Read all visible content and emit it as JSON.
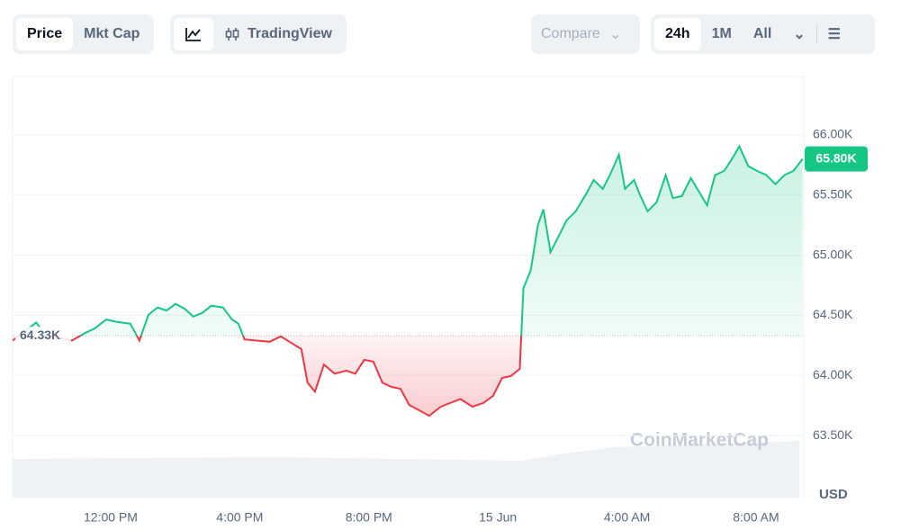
{
  "ui": {
    "tabs": [
      "Price",
      "Mkt Cap"
    ],
    "chart_tools": [
      "TradingView"
    ],
    "compare": "Compare",
    "ranges": [
      "24h",
      "1M",
      "All"
    ]
  },
  "chart_data": {
    "type": "line",
    "x": [
      8.96,
      9.69,
      9.97,
      10.8,
      11.22,
      11.5,
      11.86,
      12.2,
      12.61,
      12.89,
      13.17,
      13.45,
      13.73,
      14.01,
      14.29,
      14.56,
      14.84,
      15.12,
      15.48,
      15.76,
      15.96,
      16.15,
      16.52,
      16.93,
      17.27,
      17.63,
      17.91,
      18.1,
      18.33,
      18.61,
      18.94,
      19.3,
      19.58,
      19.86,
      20.14,
      20.42,
      20.7,
      20.98,
      21.25,
      21.53,
      21.87,
      22.23,
      22.51,
      22.84,
      23.21,
      23.54,
      23.85,
      24.13,
      24.4,
      24.68,
      24.79,
      25.02,
      25.24,
      25.41,
      25.63,
      25.85,
      26.13,
      26.41,
      26.75,
      26.97,
      27.25,
      27.47,
      27.75,
      27.94,
      28.22,
      28.42,
      28.64,
      28.92,
      29.2,
      29.42,
      29.7,
      29.98,
      30.26,
      30.48,
      30.73,
      31.01,
      31.29,
      31.48,
      31.76,
      32.04,
      32.32,
      32.6,
      32.88,
      33.16,
      33.44
    ],
    "values": [
      64290,
      64440,
      64340,
      64290,
      64355,
      64390,
      64465,
      64445,
      64430,
      64290,
      64505,
      64565,
      64540,
      64595,
      64555,
      64490,
      64520,
      64580,
      64565,
      64465,
      64430,
      64300,
      64290,
      64280,
      64325,
      64265,
      64220,
      63940,
      63865,
      64090,
      64015,
      64040,
      64015,
      64130,
      64115,
      63940,
      63905,
      63890,
      63755,
      63715,
      63665,
      63740,
      63770,
      63805,
      63740,
      63770,
      63830,
      63980,
      63995,
      64055,
      64725,
      64875,
      65250,
      65380,
      65025,
      65140,
      65290,
      65365,
      65515,
      65625,
      65550,
      65665,
      65835,
      65550,
      65625,
      65490,
      65365,
      65440,
      65665,
      65475,
      65490,
      65640,
      65515,
      65415,
      65665,
      65700,
      65815,
      65905,
      65740,
      65700,
      65665,
      65590,
      65665,
      65700,
      65800
    ],
    "baseline": {
      "value": 64330,
      "label": "64.33K"
    },
    "current_price": {
      "value": 65800,
      "label": "65.80K"
    },
    "up_color": "#16c784",
    "down_color": "#ea3943",
    "xlim": [
      8.96,
      33.48
    ],
    "xticks": [
      {
        "value": 12,
        "label": "12:00 PM"
      },
      {
        "value": 16,
        "label": "4:00 PM"
      },
      {
        "value": 20,
        "label": "8:00 PM"
      },
      {
        "value": 24,
        "label": "15 Jun"
      },
      {
        "value": 28,
        "label": "4:00 AM"
      },
      {
        "value": 32,
        "label": "8:00 AM"
      }
    ],
    "ylim": [
      62985,
      66485
    ],
    "yticks": [
      {
        "value": 66000,
        "label": "66.00K"
      },
      {
        "value": 65500,
        "label": "65.50K"
      },
      {
        "value": 65000,
        "label": "65.00K"
      },
      {
        "value": 64500,
        "label": "64.50K"
      },
      {
        "value": 64000,
        "label": "64.00K"
      },
      {
        "value": 63500,
        "label": "63.50K"
      }
    ],
    "y_unit": "USD",
    "watermark": "CoinMarketCap",
    "grid": true
  }
}
